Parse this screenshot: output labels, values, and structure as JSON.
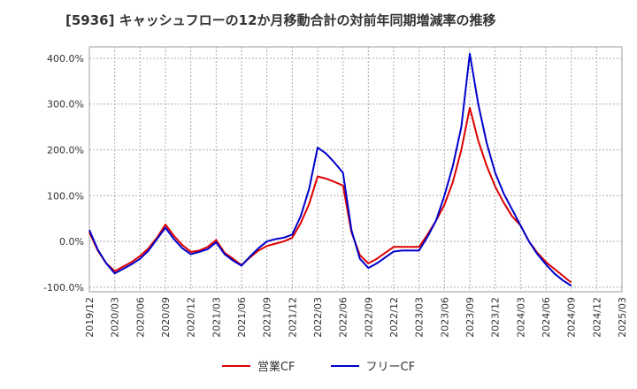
{
  "chart_data": {
    "type": "line",
    "title": "[5936]  キャッシュフローの12か月移動合計の対前年同期増減率の推移",
    "x_ticks": [
      "2019/12",
      "2020/03",
      "2020/06",
      "2020/09",
      "2020/12",
      "2021/03",
      "2021/06",
      "2021/09",
      "2021/12",
      "2022/03",
      "2022/06",
      "2022/09",
      "2022/12",
      "2023/03",
      "2023/06",
      "2023/09",
      "2023/12",
      "2024/03",
      "2024/06",
      "2024/09",
      "2024/12",
      "2025/03"
    ],
    "y_ticks": [
      "-100.0%",
      "0.0%",
      "100.0%",
      "200.0%",
      "300.0%",
      "400.0%"
    ],
    "ylim": [
      -110,
      425
    ],
    "grid": true,
    "legend_position": "bottom",
    "x": [
      "2019/12",
      "2020/01",
      "2020/02",
      "2020/03",
      "2020/04",
      "2020/05",
      "2020/06",
      "2020/07",
      "2020/08",
      "2020/09",
      "2020/10",
      "2020/11",
      "2020/12",
      "2021/01",
      "2021/02",
      "2021/03",
      "2021/04",
      "2021/05",
      "2021/06",
      "2021/07",
      "2021/08",
      "2021/09",
      "2021/10",
      "2021/11",
      "2021/12",
      "2022/01",
      "2022/02",
      "2022/03",
      "2022/04",
      "2022/05",
      "2022/06",
      "2022/07",
      "2022/08",
      "2022/09",
      "2022/10",
      "2022/11",
      "2022/12",
      "2023/01",
      "2023/02",
      "2023/03",
      "2023/04",
      "2023/05",
      "2023/06",
      "2023/07",
      "2023/08",
      "2023/09",
      "2023/10",
      "2023/11",
      "2023/12",
      "2024/01",
      "2024/02",
      "2024/03",
      "2024/04",
      "2024/05",
      "2024/06",
      "2024/07",
      "2024/08",
      "2024/09"
    ],
    "series": [
      {
        "name": "営業CF",
        "color": "#dd0000",
        "values": [
          20,
          -20,
          -48,
          -65,
          -55,
          -45,
          -32,
          -15,
          8,
          37,
          12,
          -8,
          -23,
          -20,
          -12,
          3,
          -25,
          -38,
          -52,
          -35,
          -20,
          -10,
          -5,
          0,
          8,
          40,
          82,
          142,
          137,
          130,
          122,
          20,
          -30,
          -48,
          -38,
          -25,
          -12,
          -12,
          -12,
          -12,
          15,
          45,
          80,
          130,
          200,
          292,
          220,
          165,
          120,
          85,
          55,
          35,
          0,
          -25,
          -45,
          -60,
          -75,
          -90
        ]
      },
      {
        "name": "フリーCF",
        "color": "#0000cc",
        "values": [
          25,
          -18,
          -48,
          -70,
          -60,
          -50,
          -38,
          -20,
          5,
          30,
          5,
          -15,
          -28,
          -23,
          -17,
          -2,
          -28,
          -42,
          -53,
          -33,
          -15,
          0,
          5,
          8,
          15,
          55,
          115,
          205,
          192,
          172,
          150,
          25,
          -38,
          -58,
          -48,
          -35,
          -22,
          -20,
          -20,
          -20,
          10,
          45,
          100,
          165,
          250,
          410,
          300,
          215,
          150,
          105,
          70,
          35,
          0,
          -28,
          -50,
          -70,
          -85,
          -97
        ]
      }
    ]
  }
}
